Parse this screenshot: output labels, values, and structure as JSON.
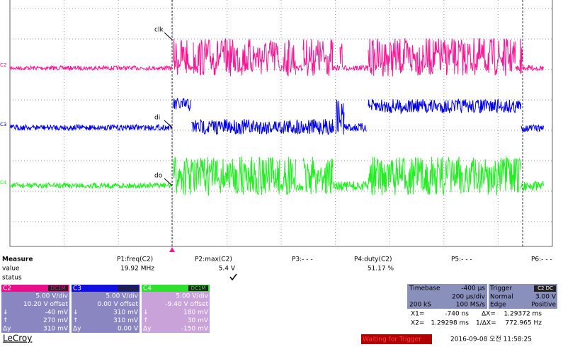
{
  "traces": [
    {
      "label": "clk",
      "channel": "C2"
    },
    {
      "label": "di",
      "channel": "C3"
    },
    {
      "label": "do",
      "channel": "C4"
    }
  ],
  "measure": {
    "title": "Measure",
    "params": [
      "P1:freq(C2)",
      "P2:max(C2)",
      "P3:- - -",
      "P4:duty(C2)",
      "P5:- - -",
      "P6:- - -"
    ],
    "value_label": "value",
    "values": [
      "19.92 MHz",
      "5.4 V",
      "51.17 %"
    ],
    "status_label": "status"
  },
  "cursor_labels": [
    "↓",
    "↑",
    "Δy"
  ],
  "channels": [
    {
      "name": "C2",
      "coupling": "DC1M",
      "vdiv": "5.00 V/div",
      "offset": "10.20 V offset",
      "down": "-40 mV",
      "up": "270 mV",
      "dy": "310 mV"
    },
    {
      "name": "C3",
      "coupling": "DC1M",
      "vdiv": "5.00 V/div",
      "offset": "0.00 V offset",
      "down": "310 mV",
      "up": "310 mV",
      "dy": "0.00 V"
    },
    {
      "name": "C4",
      "coupling": "DC1M",
      "vdiv": "5.00 V/div",
      "offset": "-9.40 V offset",
      "down": "180 mV",
      "up": "30 mV",
      "dy": "-150 mV"
    }
  ],
  "timebase": {
    "title": "Timebase",
    "delay": "-400 µs",
    "tdiv": "200 µs/div",
    "samples": "200 kS",
    "rate": "100 MS/s"
  },
  "trigger": {
    "title": "Trigger",
    "source": "C2 DC",
    "mode": "Normal",
    "level": "3.00 V",
    "type": "Edge",
    "slope": "Positive"
  },
  "cursors": {
    "x1_label": "X1=",
    "x1": "-740 ns",
    "dx_label": "ΔX=",
    "dx": "1.29372 ms",
    "x2_label": "X2=",
    "x2": "1.29298 ms",
    "inv_label": "1/ΔX=",
    "inv": "772.965 Hz"
  },
  "footer": {
    "brand": "LeCroy",
    "status": "Waiting for Trigger",
    "datetime": "2016-09-08 오전 11:58:25"
  }
}
